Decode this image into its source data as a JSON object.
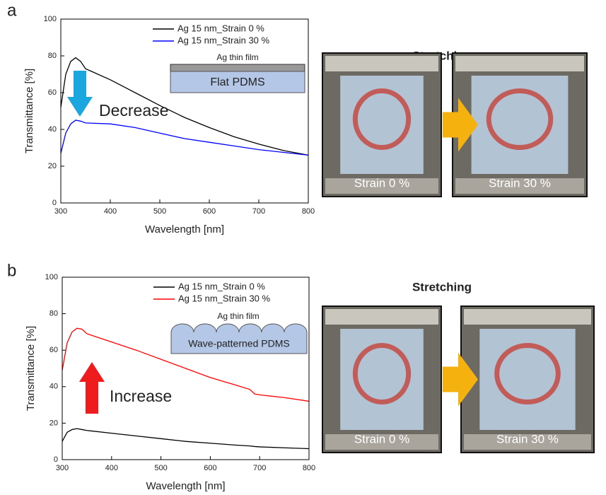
{
  "chart_data": [
    {
      "type": "line",
      "panel_label": "a",
      "xlabel": "Wavelength [nm]",
      "ylabel": "Transmittance [%]",
      "x": [
        300,
        310,
        320,
        330,
        340,
        350,
        400,
        450,
        500,
        550,
        600,
        650,
        700,
        750,
        800
      ],
      "series": [
        {
          "name": "Ag 15 nm_Strain 0 %",
          "color": "#000000",
          "values": [
            52,
            70,
            77,
            79,
            77,
            73,
            67,
            60,
            53,
            46.5,
            41,
            36,
            32,
            28.5,
            26
          ]
        },
        {
          "name": "Ag 15 nm_Strain 30 %",
          "color": "#0000ff",
          "values": [
            27,
            38,
            43,
            45,
            44.5,
            43.5,
            43,
            41,
            38,
            35,
            33,
            31,
            29,
            27.5,
            26
          ]
        }
      ],
      "xlim": [
        300,
        800
      ],
      "ylim": [
        0,
        100
      ],
      "xticks": [
        300,
        400,
        500,
        600,
        700,
        800
      ],
      "yticks": [
        0,
        20,
        40,
        60,
        80,
        100
      ],
      "legend": "upper right",
      "inset_film": "Ag thin film",
      "inset_substrate": "Flat PDMS",
      "arrow_text": "Decrease",
      "arrow_color": "#1ba6e0",
      "inset_shape": "flat"
    },
    {
      "type": "line",
      "panel_label": "b",
      "xlabel": "Wavelength [nm]",
      "ylabel": "Transmittance [%]",
      "x": [
        300,
        310,
        320,
        330,
        340,
        350,
        400,
        450,
        500,
        550,
        600,
        650,
        680,
        690,
        700,
        750,
        800
      ],
      "series": [
        {
          "name": "Ag 15 nm_Strain 0 %",
          "color": "#000000",
          "values": [
            10,
            15,
            16.5,
            17,
            16.5,
            16,
            14.5,
            13,
            11.5,
            10,
            9,
            8,
            7.5,
            7.2,
            7,
            6.5,
            6
          ]
        },
        {
          "name": "Ag 15 nm_Strain 30 %",
          "color": "#ff0000",
          "values": [
            49,
            64,
            70,
            72,
            71.5,
            69,
            64.5,
            60,
            55,
            50,
            45,
            41,
            38.5,
            36,
            35.5,
            34,
            32
          ]
        }
      ],
      "xlim": [
        300,
        800
      ],
      "ylim": [
        0,
        100
      ],
      "xticks": [
        300,
        400,
        500,
        600,
        700,
        800
      ],
      "yticks": [
        0,
        20,
        40,
        60,
        80,
        100
      ],
      "legend": "upper right",
      "inset_film": "Ag thin film",
      "inset_substrate": "Wave-patterned PDMS",
      "arrow_text": "Increase",
      "arrow_color": "#ee1c1c",
      "inset_shape": "wave"
    }
  ],
  "photos": [
    {
      "title": "Stretching",
      "labels": [
        "Strain 0 %",
        "Strain 30 %"
      ]
    },
    {
      "title": "Stretching",
      "labels": [
        "Strain 0 %",
        "Strain 30 %"
      ]
    }
  ]
}
